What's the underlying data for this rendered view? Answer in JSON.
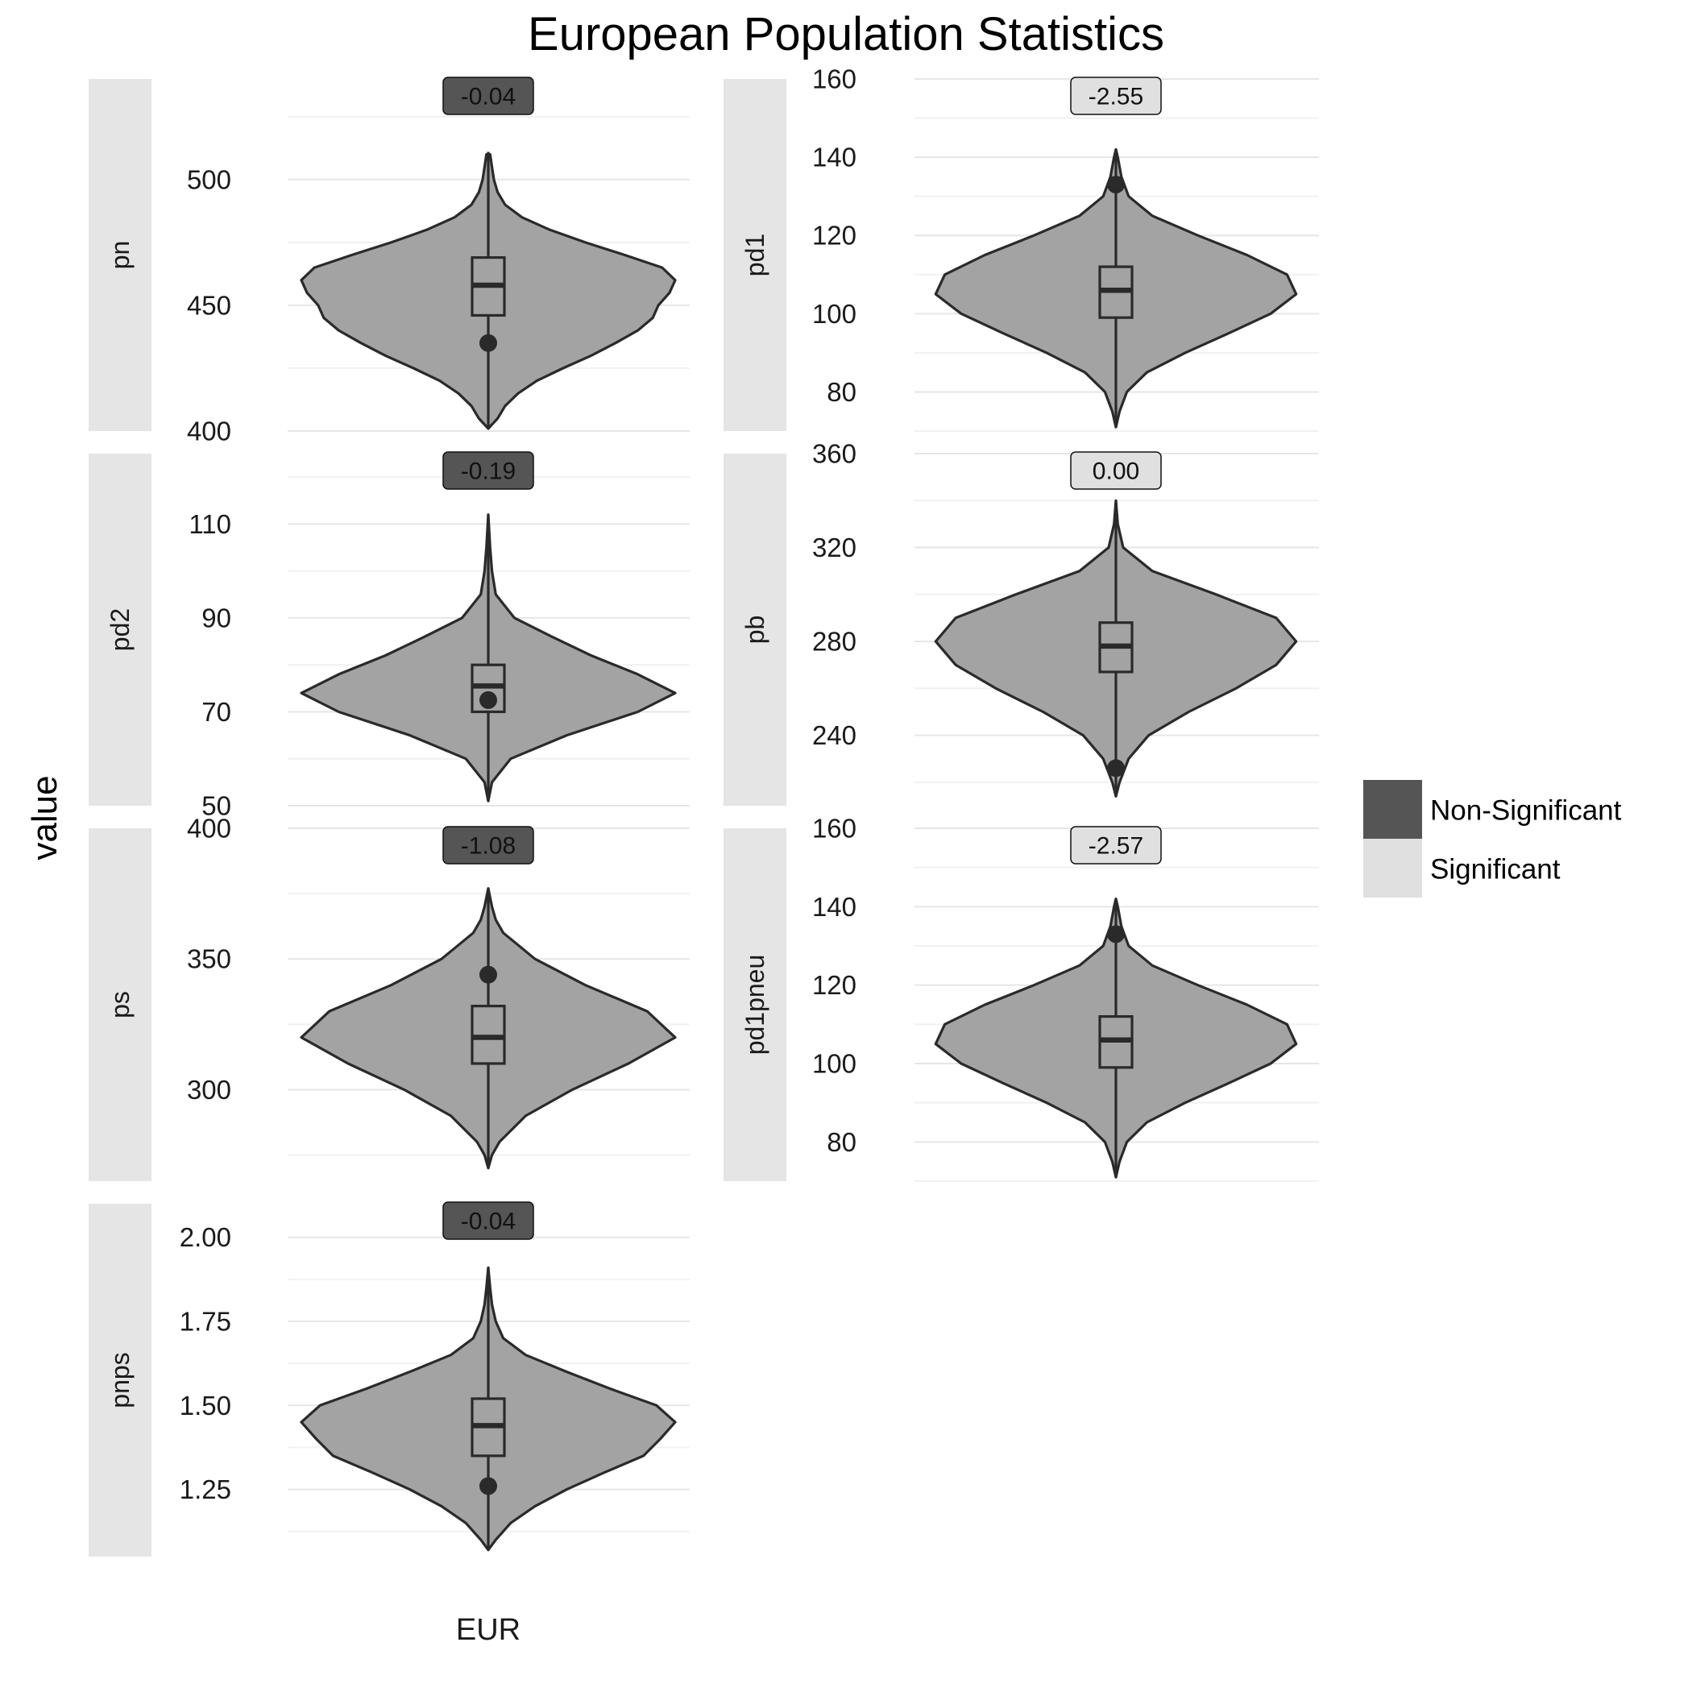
{
  "chart_data": {
    "type": "violin",
    "title": "European Population Statistics",
    "ylabel": "value",
    "xlabel": "",
    "category": "EUR",
    "grid": true,
    "legend": {
      "placement": "right",
      "items": [
        {
          "label": "Non-Significant",
          "color": "#555555"
        },
        {
          "label": "Significant",
          "color": "#e0e0e0"
        }
      ]
    },
    "colors": {
      "violin_fill": "#a3a3a3",
      "outline": "#2a2a2a",
      "strip": "#e5e5e5",
      "grid": "#e6e6e6"
    },
    "panels": [
      {
        "strip": "pn",
        "ylim": [
          400,
          540
        ],
        "ticks": [
          400,
          450,
          500
        ],
        "tick_labels": [
          "400",
          "450",
          "500"
        ],
        "badge": {
          "text": "-0.04",
          "significant": false
        },
        "violin": [
          [
            401,
            0
          ],
          [
            405,
            0.05
          ],
          [
            410,
            0.09
          ],
          [
            415,
            0.16
          ],
          [
            420,
            0.26
          ],
          [
            425,
            0.4
          ],
          [
            430,
            0.55
          ],
          [
            435,
            0.68
          ],
          [
            440,
            0.8
          ],
          [
            445,
            0.88
          ],
          [
            450,
            0.91
          ],
          [
            455,
            0.97
          ],
          [
            460,
            1.0
          ],
          [
            465,
            0.93
          ],
          [
            470,
            0.73
          ],
          [
            475,
            0.52
          ],
          [
            480,
            0.33
          ],
          [
            485,
            0.18
          ],
          [
            490,
            0.09
          ],
          [
            495,
            0.05
          ],
          [
            500,
            0.03
          ],
          [
            505,
            0.02
          ],
          [
            510,
            0.01
          ]
        ],
        "box": {
          "lower": 446,
          "median": 458,
          "upper": 469,
          "whisker_low": 401,
          "whisker_high": 511
        },
        "point": 435
      },
      {
        "strip": "pd1",
        "ylim": [
          70,
          160
        ],
        "ticks": [
          80,
          100,
          120,
          140,
          160
        ],
        "tick_labels": [
          "80",
          "100",
          "120",
          "140",
          "160"
        ],
        "badge": {
          "text": "-2.55",
          "significant": true
        },
        "violin": [
          [
            71,
            0
          ],
          [
            75,
            0.02
          ],
          [
            80,
            0.06
          ],
          [
            85,
            0.17
          ],
          [
            90,
            0.38
          ],
          [
            95,
            0.62
          ],
          [
            100,
            0.85
          ],
          [
            105,
            0.99
          ],
          [
            110,
            0.94
          ],
          [
            115,
            0.72
          ],
          [
            120,
            0.45
          ],
          [
            125,
            0.2
          ],
          [
            130,
            0.07
          ],
          [
            135,
            0.03
          ],
          [
            140,
            0.01
          ],
          [
            142,
            0
          ]
        ],
        "box": {
          "lower": 99,
          "median": 106,
          "upper": 112,
          "whisker_low": 71,
          "whisker_high": 142
        },
        "point": 133
      },
      {
        "strip": "pd2",
        "ylim": [
          50,
          125
        ],
        "ticks": [
          50,
          70,
          90,
          110
        ],
        "tick_labels": [
          "50",
          "70",
          "90",
          "110"
        ],
        "badge": {
          "text": "-0.19",
          "significant": false
        },
        "violin": [
          [
            51,
            0
          ],
          [
            55,
            0.02
          ],
          [
            60,
            0.12
          ],
          [
            65,
            0.42
          ],
          [
            70,
            0.8
          ],
          [
            74,
            1.0
          ],
          [
            78,
            0.8
          ],
          [
            82,
            0.55
          ],
          [
            86,
            0.34
          ],
          [
            90,
            0.14
          ],
          [
            95,
            0.04
          ],
          [
            100,
            0.02
          ],
          [
            105,
            0.01
          ],
          [
            112,
            0
          ]
        ],
        "box": {
          "lower": 70,
          "median": 75.5,
          "upper": 80,
          "whisker_low": 51,
          "whisker_high": 112
        },
        "point": 72.5
      },
      {
        "strip": "pb",
        "ylim": [
          210,
          360
        ],
        "ticks": [
          240,
          280,
          320,
          360
        ],
        "tick_labels": [
          "240",
          "280",
          "320",
          "360"
        ],
        "badge": {
          "text": "0.00",
          "significant": true
        },
        "violin": [
          [
            214,
            0
          ],
          [
            220,
            0.02
          ],
          [
            230,
            0.07
          ],
          [
            240,
            0.18
          ],
          [
            250,
            0.4
          ],
          [
            260,
            0.66
          ],
          [
            270,
            0.88
          ],
          [
            280,
            0.99
          ],
          [
            290,
            0.88
          ],
          [
            300,
            0.55
          ],
          [
            310,
            0.2
          ],
          [
            320,
            0.04
          ],
          [
            330,
            0.01
          ],
          [
            340,
            0
          ]
        ],
        "box": {
          "lower": 267,
          "median": 278,
          "upper": 288,
          "whisker_low": 214,
          "whisker_high": 340
        },
        "point": 226
      },
      {
        "strip": "ps",
        "ylim": [
          265,
          400
        ],
        "ticks": [
          300,
          350,
          400
        ],
        "tick_labels": [
          "300",
          "350",
          "400"
        ],
        "badge": {
          "text": "-1.08",
          "significant": false
        },
        "violin": [
          [
            270,
            0
          ],
          [
            275,
            0.02
          ],
          [
            280,
            0.06
          ],
          [
            290,
            0.2
          ],
          [
            300,
            0.45
          ],
          [
            310,
            0.75
          ],
          [
            320,
            1.0
          ],
          [
            330,
            0.85
          ],
          [
            340,
            0.52
          ],
          [
            350,
            0.25
          ],
          [
            360,
            0.08
          ],
          [
            365,
            0.04
          ],
          [
            370,
            0.02
          ],
          [
            377,
            0
          ]
        ],
        "box": {
          "lower": 310,
          "median": 320,
          "upper": 332,
          "whisker_low": 270,
          "whisker_high": 377
        },
        "point": 344
      },
      {
        "strip": "pd1pneu",
        "ylim": [
          70,
          160
        ],
        "ticks": [
          80,
          100,
          120,
          140,
          160
        ],
        "tick_labels": [
          "80",
          "100",
          "120",
          "140",
          "160"
        ],
        "badge": {
          "text": "-2.57",
          "significant": true
        },
        "violin": [
          [
            71,
            0
          ],
          [
            75,
            0.02
          ],
          [
            80,
            0.06
          ],
          [
            85,
            0.17
          ],
          [
            90,
            0.38
          ],
          [
            95,
            0.62
          ],
          [
            100,
            0.85
          ],
          [
            105,
            0.99
          ],
          [
            110,
            0.94
          ],
          [
            115,
            0.72
          ],
          [
            120,
            0.45
          ],
          [
            125,
            0.2
          ],
          [
            130,
            0.07
          ],
          [
            135,
            0.03
          ],
          [
            140,
            0.01
          ],
          [
            142,
            0
          ]
        ],
        "box": {
          "lower": 99,
          "median": 106,
          "upper": 112,
          "whisker_low": 71,
          "whisker_high": 142
        },
        "point": 133
      },
      {
        "strip": "pnps",
        "ylim": [
          1.05,
          2.1
        ],
        "ticks": [
          1.25,
          1.5,
          1.75,
          2.0
        ],
        "tick_labels": [
          "1.25",
          "1.50",
          "1.75",
          "2.00"
        ],
        "badge": {
          "text": "-0.04",
          "significant": false
        },
        "violin": [
          [
            1.07,
            0
          ],
          [
            1.1,
            0.04
          ],
          [
            1.15,
            0.12
          ],
          [
            1.2,
            0.25
          ],
          [
            1.25,
            0.42
          ],
          [
            1.3,
            0.62
          ],
          [
            1.35,
            0.83
          ],
          [
            1.4,
            0.92
          ],
          [
            1.45,
            1.0
          ],
          [
            1.5,
            0.9
          ],
          [
            1.55,
            0.65
          ],
          [
            1.6,
            0.42
          ],
          [
            1.65,
            0.2
          ],
          [
            1.7,
            0.08
          ],
          [
            1.75,
            0.04
          ],
          [
            1.8,
            0.02
          ],
          [
            1.85,
            0.01
          ],
          [
            1.91,
            0
          ]
        ],
        "box": {
          "lower": 1.35,
          "median": 1.44,
          "upper": 1.52,
          "whisker_low": 1.07,
          "whisker_high": 1.91
        },
        "point": 1.26
      }
    ]
  }
}
